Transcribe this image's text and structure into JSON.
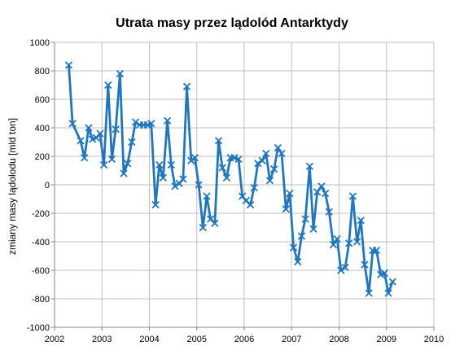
{
  "chart_data": {
    "type": "line",
    "title": "Utrata masy przez lądolód Antarktydy",
    "xlabel": "",
    "ylabel": "zmiany masy lądolodu [mld ton]",
    "xlim": [
      2002,
      2010
    ],
    "ylim": [
      -1000,
      1000
    ],
    "x_ticks": [
      "2002",
      "2003",
      "2004",
      "2005",
      "2006",
      "2007",
      "2008",
      "2009",
      "2010"
    ],
    "y_ticks": [
      "1000",
      "800",
      "600",
      "400",
      "200",
      "0",
      "-200",
      "-400",
      "-600",
      "-800",
      "-1000"
    ],
    "grid": true,
    "legend": "none",
    "colors": {
      "series": "#1f77c0",
      "grid": "#bfbfbf",
      "axis": "#868686"
    },
    "series": [
      {
        "marker": "x",
        "x": [
          2002.3,
          2002.38,
          2002.55,
          2002.63,
          2002.72,
          2002.8,
          2002.88,
          2002.96,
          2003.04,
          2003.13,
          2003.21,
          2003.29,
          2003.38,
          2003.46,
          2003.54,
          2003.63,
          2003.71,
          2003.79,
          2003.88,
          2003.96,
          2004.04,
          2004.13,
          2004.21,
          2004.29,
          2004.38,
          2004.46,
          2004.54,
          2004.63,
          2004.71,
          2004.79,
          2004.88,
          2004.96,
          2005.04,
          2005.13,
          2005.21,
          2005.29,
          2005.38,
          2005.46,
          2005.54,
          2005.63,
          2005.71,
          2005.79,
          2005.88,
          2005.96,
          2006.04,
          2006.13,
          2006.21,
          2006.29,
          2006.38,
          2006.46,
          2006.54,
          2006.63,
          2006.71,
          2006.79,
          2006.88,
          2006.96,
          2007.04,
          2007.13,
          2007.21,
          2007.29,
          2007.38,
          2007.46,
          2007.54,
          2007.63,
          2007.71,
          2007.79,
          2007.88,
          2007.96,
          2008.04,
          2008.13,
          2008.21,
          2008.29,
          2008.38,
          2008.46,
          2008.54,
          2008.63,
          2008.71,
          2008.79,
          2008.88,
          2008.96,
          2009.04,
          2009.13
        ],
        "y": [
          840,
          430,
          310,
          190,
          400,
          320,
          330,
          360,
          140,
          700,
          180,
          390,
          780,
          80,
          150,
          300,
          440,
          420,
          420,
          420,
          430,
          -140,
          140,
          50,
          450,
          140,
          -10,
          10,
          40,
          690,
          170,
          190,
          0,
          -300,
          -80,
          -240,
          -270,
          310,
          120,
          50,
          190,
          190,
          180,
          -80,
          -110,
          -140,
          -20,
          150,
          170,
          220,
          30,
          110,
          260,
          220,
          -170,
          -60,
          -440,
          -540,
          -360,
          -240,
          130,
          -310,
          -50,
          -10,
          -60,
          -190,
          -420,
          -380,
          -600,
          -580,
          -410,
          -80,
          -400,
          -250,
          -560,
          -760,
          -460,
          -460,
          -630,
          -620,
          -760,
          -680
        ]
      }
    ]
  }
}
